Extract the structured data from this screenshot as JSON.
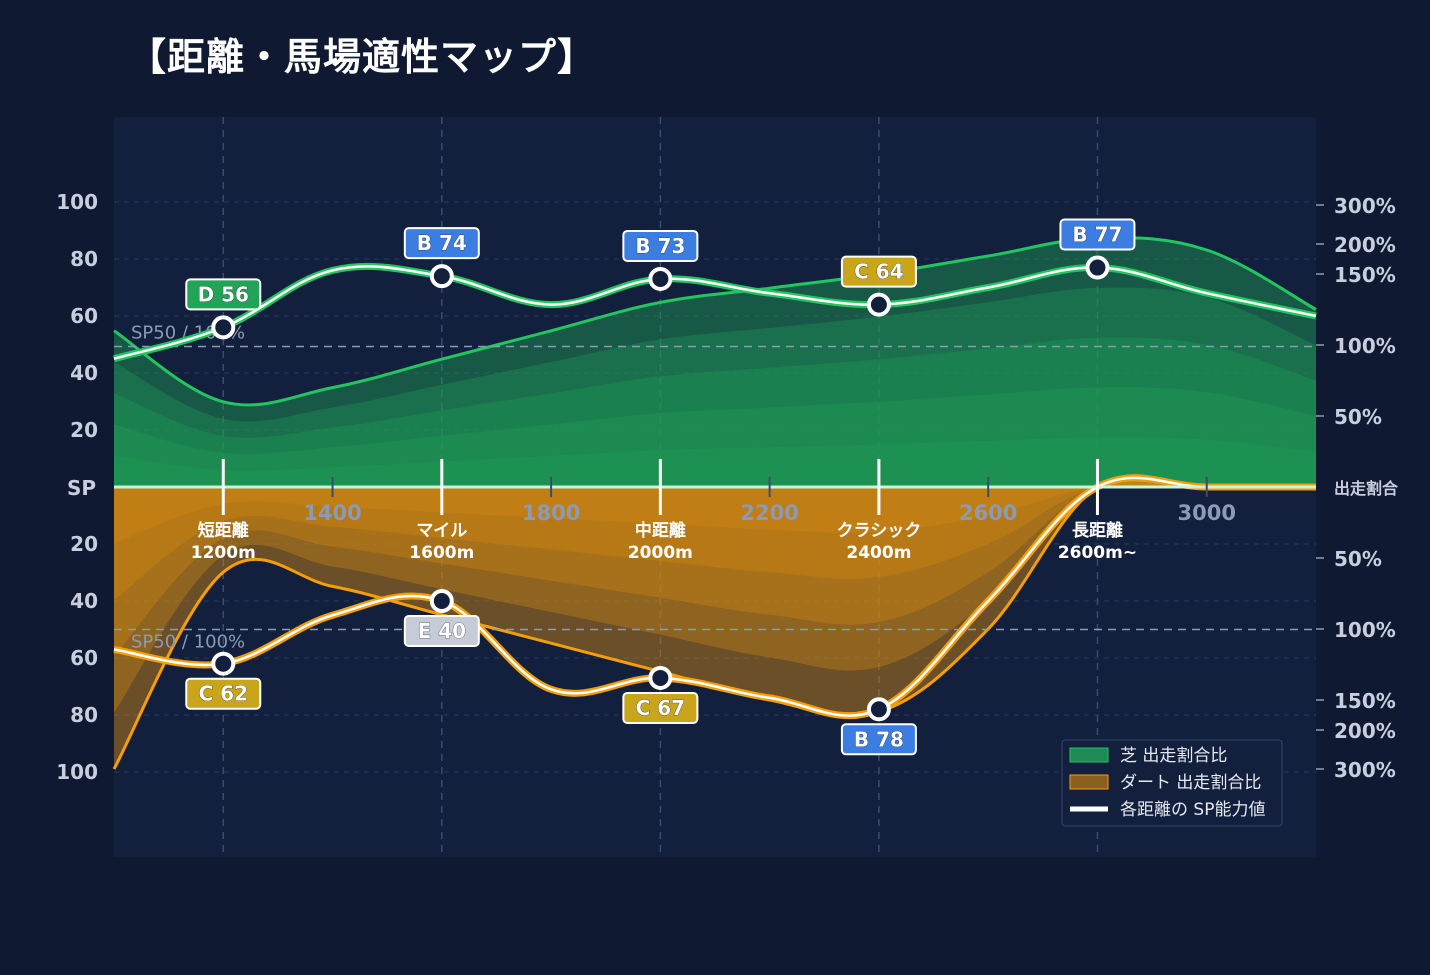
{
  "title": "【距離・馬場適性マップ】",
  "chart_data": {
    "type": "area",
    "x_ticks": [
      1400,
      1800,
      2200,
      2600,
      3000
    ],
    "x_range": [
      1000,
      3200
    ],
    "categories": [
      {
        "line1": "短距離",
        "line2": "1200m",
        "x": 1200
      },
      {
        "line1": "マイル",
        "line2": "1600m",
        "x": 1600
      },
      {
        "line1": "中距離",
        "line2": "2000m",
        "x": 2000
      },
      {
        "line1": "クラシック",
        "line2": "2400m",
        "x": 2400
      },
      {
        "line1": "長距離",
        "line2": "2600m~",
        "x": 2800
      }
    ],
    "left_axis": {
      "center_label": "SP",
      "ticks": [
        20,
        40,
        60,
        80,
        100
      ],
      "range": [
        0,
        100
      ]
    },
    "right_axis": {
      "center_label": "出走割合",
      "ticks_label": [
        "50%",
        "100%",
        "150%",
        "200%",
        "300%"
      ],
      "ticks_value": [
        50,
        100,
        150,
        200,
        300
      ]
    },
    "reference_lines": {
      "sp": 50,
      "ratio": 100,
      "label": "SP50 / 100%"
    },
    "legend": [
      {
        "label": "芝 出走割合比",
        "color": "#1f8a53"
      },
      {
        "label": "ダート 出走割合比",
        "color": "#8a5f1f"
      },
      {
        "label": "各距離の SP能力値",
        "color": "#ffffff"
      }
    ],
    "turf": {
      "color": "#22c55e",
      "ratio_x": [
        1000,
        1200,
        1400,
        1600,
        1800,
        2000,
        2200,
        2400,
        2600,
        2800,
        3000,
        3200
      ],
      "ratio": [
        110,
        60,
        70,
        90,
        110,
        130,
        140,
        150,
        180,
        215,
        190,
        125
      ],
      "sp_x": [
        1000,
        1200,
        1400,
        1600,
        1800,
        2000,
        2200,
        2400,
        2600,
        2800,
        3000,
        3200
      ],
      "sp": [
        45,
        56,
        76,
        74,
        64,
        73,
        68,
        64,
        70,
        77,
        68,
        60
      ],
      "grades": [
        {
          "x": 1200,
          "grade": "D",
          "value": 56,
          "color": "#22a357"
        },
        {
          "x": 1600,
          "grade": "B",
          "value": 74,
          "color": "#3b7de0"
        },
        {
          "x": 2000,
          "grade": "B",
          "value": 73,
          "color": "#3b7de0"
        },
        {
          "x": 2400,
          "grade": "C",
          "value": 64,
          "color": "#c9a51c"
        },
        {
          "x": 2800,
          "grade": "B",
          "value": 77,
          "color": "#3b7de0"
        }
      ]
    },
    "dirt": {
      "color": "#f59e0b",
      "ratio_x": [
        1000,
        1200,
        1400,
        1600,
        1800,
        2000,
        2200,
        2400,
        2600,
        2800,
        3000,
        3200
      ],
      "ratio": [
        300,
        60,
        70,
        90,
        110,
        130,
        150,
        170,
        100,
        0,
        0,
        0
      ],
      "sp_x": [
        1000,
        1200,
        1400,
        1600,
        1800,
        2000,
        2200,
        2400,
        2600,
        2800,
        3000,
        3200
      ],
      "sp": [
        57,
        62,
        45,
        40,
        71,
        67,
        74,
        78,
        40,
        0,
        0,
        0
      ],
      "grades": [
        {
          "x": 1200,
          "grade": "C",
          "value": 62,
          "color": "#c9a51c"
        },
        {
          "x": 1600,
          "grade": "E",
          "value": 40,
          "color": "#c5ccd8"
        },
        {
          "x": 2000,
          "grade": "C",
          "value": 67,
          "color": "#c9a51c"
        },
        {
          "x": 2400,
          "grade": "B",
          "value": 78,
          "color": "#3b7de0"
        }
      ]
    }
  }
}
